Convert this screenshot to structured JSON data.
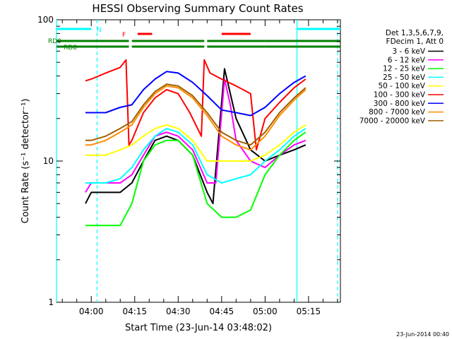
{
  "chart_data": {
    "type": "line",
    "title": "HESSI Observing Summary Count Rates",
    "xlabel": "Start Time (23-Jun-14 03:48:02)",
    "ylabel": "Count Rate (s⁻¹ detector⁻¹)",
    "x_unit": "minutes UT",
    "xlim": [
      "03:48",
      "05:26"
    ],
    "ylim": [
      1,
      100
    ],
    "y_scale": "log",
    "grid": false,
    "x_ticks": [
      "04:00",
      "04:15",
      "04:30",
      "04:45",
      "05:00",
      "05:15"
    ],
    "y_ticks": [
      "1",
      "10",
      "100"
    ],
    "legend_position": "right",
    "legend_header": [
      "Det 1,3,5,6,7,9,",
      "FDecim 1, Att 0"
    ],
    "footer_date": "23-Jun-2014 00:40",
    "flags": {
      "N": {
        "label": "N",
        "color": "#00ffff",
        "intervals": [
          [
            "03:48",
            "04:00"
          ],
          [
            "05:11",
            "05:26"
          ]
        ]
      },
      "F": {
        "label": "F",
        "color": "#ff0000",
        "intervals": [
          [
            "04:16",
            "04:21"
          ],
          [
            "04:45",
            "04:55"
          ]
        ]
      },
      "RD0": {
        "label": "RD0",
        "color": "#008000",
        "intervals": [
          [
            "03:48",
            "04:13"
          ],
          [
            "04:14",
            "04:39"
          ],
          [
            "04:40",
            "05:00"
          ],
          [
            "05:00",
            "05:26"
          ]
        ]
      },
      "RD8": {
        "label": "RD8",
        "color": "#008000",
        "intervals": [
          [
            "03:48",
            "04:13"
          ],
          [
            "04:14",
            "04:39"
          ],
          [
            "04:40",
            "05:00"
          ],
          [
            "05:00",
            "05:26"
          ]
        ]
      }
    },
    "vlines": [
      {
        "t": "03:48",
        "style": "solid",
        "color": "#00ffff"
      },
      {
        "t": "04:02",
        "style": "dashed",
        "color": "#00ffff"
      },
      {
        "t": "05:11",
        "style": "solid",
        "color": "#00ffff"
      },
      {
        "t": "05:25",
        "style": "dashed",
        "color": "#00ffff"
      }
    ],
    "series": [
      {
        "name": "3 - 6 keV",
        "color": "#000000",
        "points": [
          [
            "03:58",
            5
          ],
          [
            "04:00",
            6
          ],
          [
            "04:05",
            6
          ],
          [
            "04:10",
            6
          ],
          [
            "04:14",
            7
          ],
          [
            "04:18",
            10
          ],
          [
            "04:22",
            14
          ],
          [
            "04:26",
            15
          ],
          [
            "04:30",
            14
          ],
          [
            "04:35",
            11
          ],
          [
            "04:40",
            6
          ],
          [
            "04:42",
            5
          ],
          [
            "04:44",
            15
          ],
          [
            "04:46",
            45
          ],
          [
            "04:48",
            30
          ],
          [
            "04:50",
            20
          ],
          [
            "04:55",
            12
          ],
          [
            "05:00",
            10
          ],
          [
            "05:05",
            11
          ],
          [
            "05:10",
            12
          ],
          [
            "05:14",
            13
          ]
        ]
      },
      {
        "name": "6 - 12 keV",
        "color": "#ff00ff",
        "points": [
          [
            "03:58",
            6
          ],
          [
            "04:00",
            7
          ],
          [
            "04:05",
            7
          ],
          [
            "04:10",
            7
          ],
          [
            "04:14",
            8
          ],
          [
            "04:18",
            11
          ],
          [
            "04:22",
            15
          ],
          [
            "04:26",
            16
          ],
          [
            "04:30",
            15
          ],
          [
            "04:35",
            12
          ],
          [
            "04:40",
            7
          ],
          [
            "04:43",
            7
          ],
          [
            "04:46",
            38
          ],
          [
            "04:48",
            25
          ],
          [
            "04:50",
            14
          ],
          [
            "04:55",
            10
          ],
          [
            "05:00",
            9
          ],
          [
            "05:05",
            11
          ],
          [
            "05:10",
            13
          ],
          [
            "05:14",
            14
          ]
        ]
      },
      {
        "name": "12 - 25 keV",
        "color": "#00ff00",
        "points": [
          [
            "03:58",
            3.5
          ],
          [
            "04:00",
            3.5
          ],
          [
            "04:05",
            3.5
          ],
          [
            "04:10",
            3.5
          ],
          [
            "04:14",
            5
          ],
          [
            "04:18",
            10
          ],
          [
            "04:22",
            13
          ],
          [
            "04:26",
            14
          ],
          [
            "04:30",
            14
          ],
          [
            "04:35",
            11
          ],
          [
            "04:40",
            5
          ],
          [
            "04:45",
            4
          ],
          [
            "04:50",
            4
          ],
          [
            "04:55",
            4.5
          ],
          [
            "05:00",
            8
          ],
          [
            "05:05",
            11
          ],
          [
            "05:10",
            14
          ],
          [
            "05:14",
            16
          ]
        ]
      },
      {
        "name": "25 - 50 keV",
        "color": "#00ffff",
        "points": [
          [
            "03:58",
            7
          ],
          [
            "04:00",
            7
          ],
          [
            "04:05",
            7
          ],
          [
            "04:10",
            7.5
          ],
          [
            "04:14",
            9
          ],
          [
            "04:18",
            12
          ],
          [
            "04:22",
            15
          ],
          [
            "04:26",
            17
          ],
          [
            "04:30",
            16
          ],
          [
            "04:35",
            13
          ],
          [
            "04:40",
            8
          ],
          [
            "04:45",
            7
          ],
          [
            "04:50",
            7.5
          ],
          [
            "04:55",
            8
          ],
          [
            "05:00",
            10
          ],
          [
            "05:05",
            12
          ],
          [
            "05:10",
            15
          ],
          [
            "05:14",
            17
          ]
        ]
      },
      {
        "name": "50 - 100 keV",
        "color": "#ffff00",
        "points": [
          [
            "03:58",
            11
          ],
          [
            "04:00",
            11
          ],
          [
            "04:05",
            11
          ],
          [
            "04:10",
            12
          ],
          [
            "04:14",
            13
          ],
          [
            "04:18",
            15
          ],
          [
            "04:22",
            17
          ],
          [
            "04:26",
            18
          ],
          [
            "04:30",
            17
          ],
          [
            "04:35",
            14
          ],
          [
            "04:40",
            10
          ],
          [
            "04:45",
            10
          ],
          [
            "04:50",
            10
          ],
          [
            "04:55",
            10
          ],
          [
            "05:00",
            11
          ],
          [
            "05:05",
            13
          ],
          [
            "05:10",
            16
          ],
          [
            "05:14",
            18
          ]
        ]
      },
      {
        "name": "100 - 300 keV",
        "color": "#ff0000",
        "points": [
          [
            "03:58",
            37
          ],
          [
            "04:00",
            38
          ],
          [
            "04:05",
            42
          ],
          [
            "04:10",
            46
          ],
          [
            "04:12",
            52
          ],
          [
            "04:13",
            13
          ],
          [
            "04:14",
            14
          ],
          [
            "04:18",
            22
          ],
          [
            "04:22",
            28
          ],
          [
            "04:26",
            32
          ],
          [
            "04:30",
            30
          ],
          [
            "04:34",
            22
          ],
          [
            "04:38",
            15
          ],
          [
            "04:39",
            52
          ],
          [
            "04:41",
            42
          ],
          [
            "04:45",
            38
          ],
          [
            "04:50",
            34
          ],
          [
            "04:55",
            30
          ],
          [
            "04:57",
            12
          ],
          [
            "05:00",
            20
          ],
          [
            "05:05",
            26
          ],
          [
            "05:10",
            33
          ],
          [
            "05:14",
            38
          ]
        ]
      },
      {
        "name": "300 - 800 keV",
        "color": "#0000ff",
        "points": [
          [
            "03:58",
            22
          ],
          [
            "04:00",
            22
          ],
          [
            "04:05",
            22
          ],
          [
            "04:10",
            24
          ],
          [
            "04:14",
            25
          ],
          [
            "04:18",
            32
          ],
          [
            "04:22",
            38
          ],
          [
            "04:26",
            43
          ],
          [
            "04:30",
            42
          ],
          [
            "04:35",
            36
          ],
          [
            "04:40",
            29
          ],
          [
            "04:45",
            23
          ],
          [
            "04:50",
            22
          ],
          [
            "04:55",
            21
          ],
          [
            "05:00",
            24
          ],
          [
            "05:05",
            30
          ],
          [
            "05:10",
            36
          ],
          [
            "05:14",
            40
          ]
        ]
      },
      {
        "name": "800 - 7000 keV",
        "color": "#ff8c00",
        "points": [
          [
            "03:58",
            13
          ],
          [
            "04:00",
            13
          ],
          [
            "04:05",
            14
          ],
          [
            "04:10",
            16
          ],
          [
            "04:14",
            18
          ],
          [
            "04:18",
            24
          ],
          [
            "04:22",
            30
          ],
          [
            "04:26",
            34
          ],
          [
            "04:30",
            33
          ],
          [
            "04:35",
            28
          ],
          [
            "04:40",
            21
          ],
          [
            "04:45",
            15
          ],
          [
            "04:50",
            13
          ],
          [
            "04:55",
            12
          ],
          [
            "05:00",
            15
          ],
          [
            "05:05",
            21
          ],
          [
            "05:10",
            27
          ],
          [
            "05:14",
            32
          ]
        ]
      },
      {
        "name": "7000 - 20000 keV",
        "color": "#a06000",
        "points": [
          [
            "03:58",
            14
          ],
          [
            "04:00",
            14
          ],
          [
            "04:05",
            15
          ],
          [
            "04:10",
            17
          ],
          [
            "04:14",
            19
          ],
          [
            "04:18",
            25
          ],
          [
            "04:22",
            31
          ],
          [
            "04:26",
            35
          ],
          [
            "04:30",
            34
          ],
          [
            "04:35",
            29
          ],
          [
            "04:40",
            22
          ],
          [
            "04:45",
            16
          ],
          [
            "04:50",
            14
          ],
          [
            "04:55",
            13
          ],
          [
            "05:00",
            16
          ],
          [
            "05:05",
            22
          ],
          [
            "05:10",
            28
          ],
          [
            "05:14",
            33
          ]
        ]
      }
    ]
  }
}
